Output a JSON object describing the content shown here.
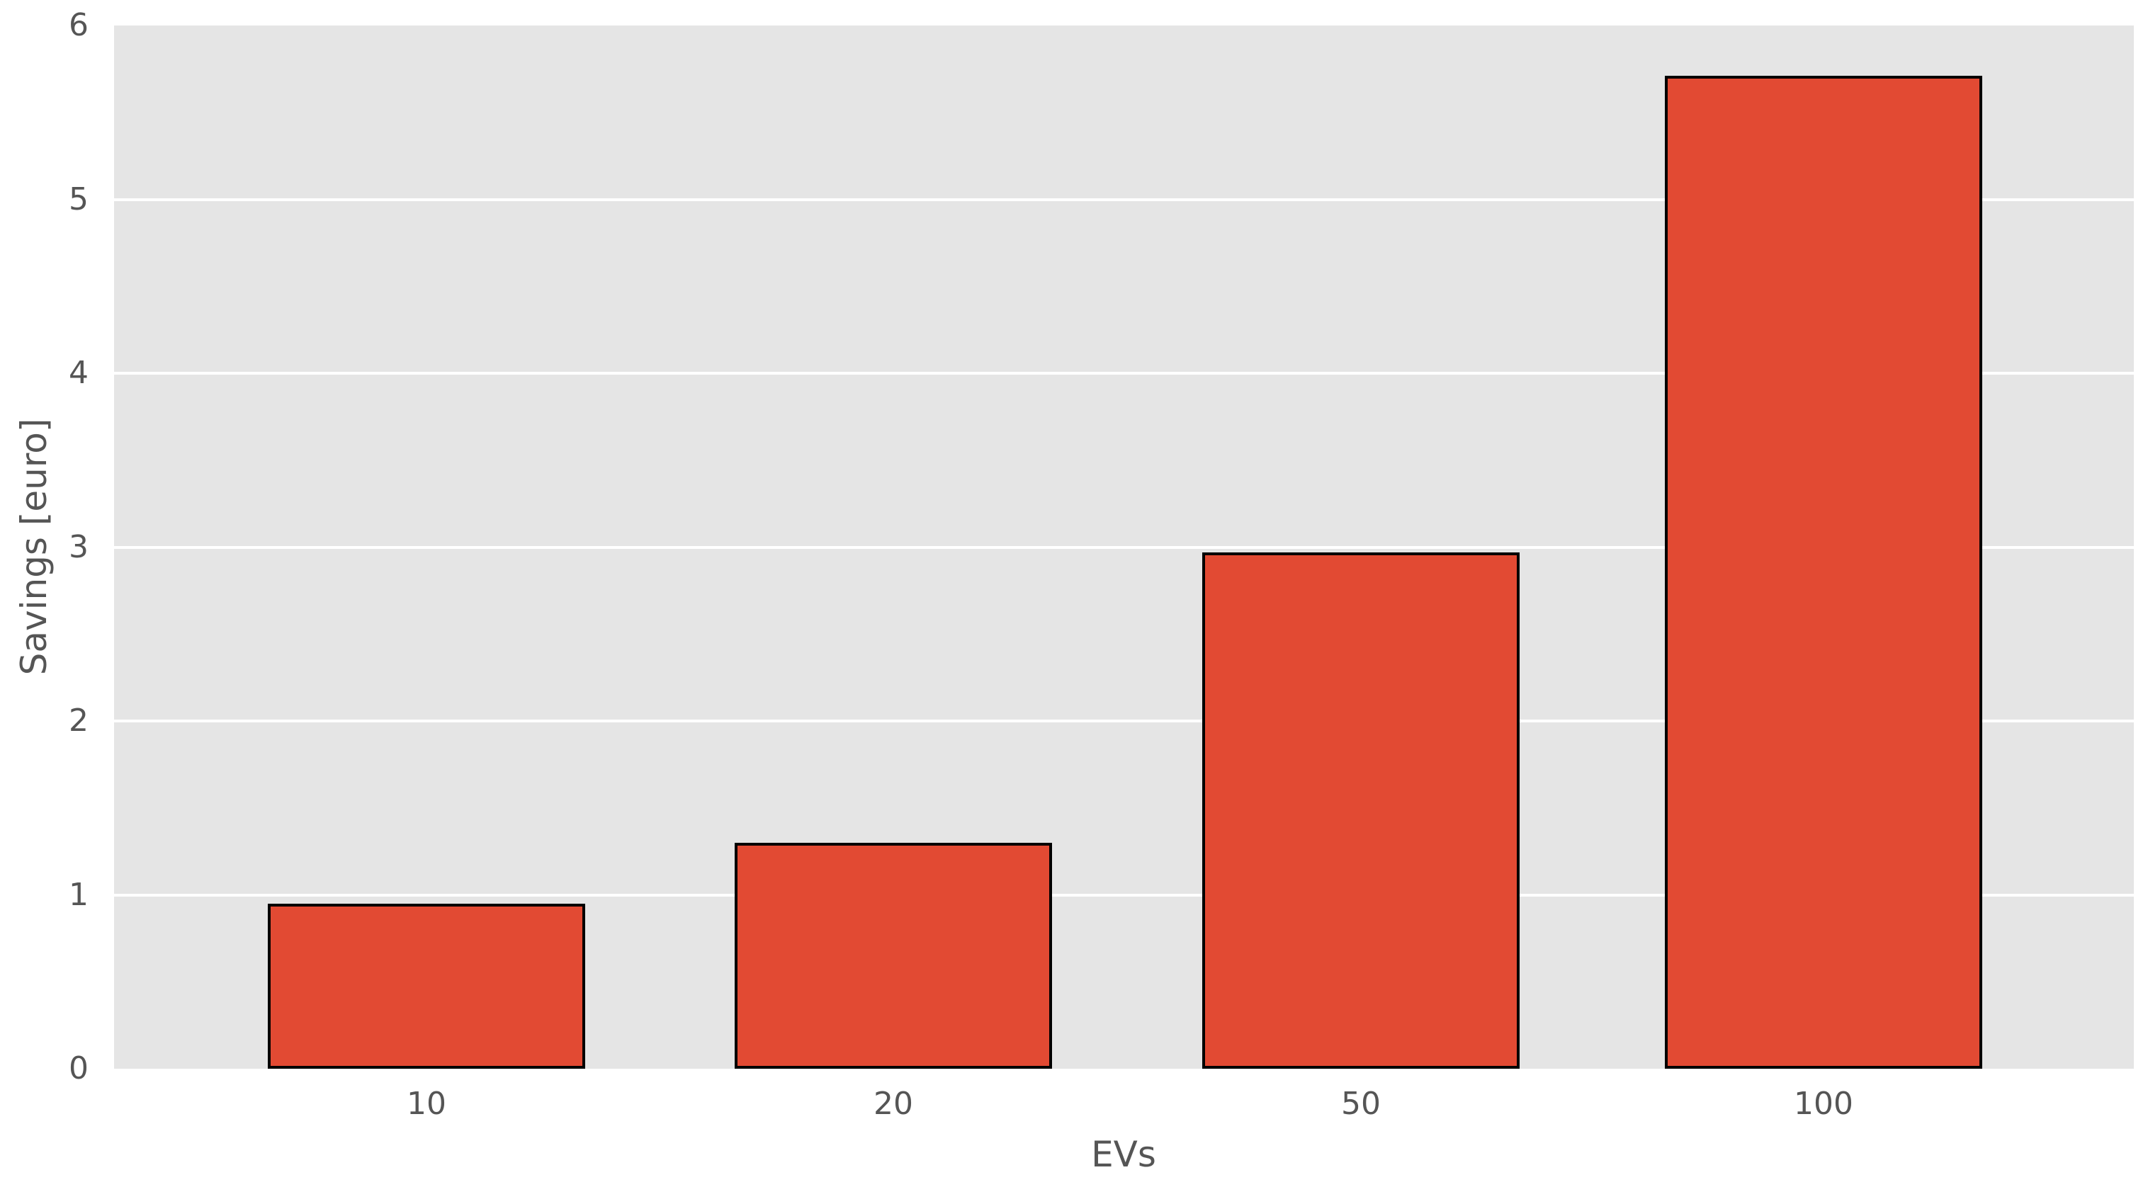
{
  "chart_data": {
    "type": "bar",
    "categories": [
      "10",
      "20",
      "50",
      "100"
    ],
    "values": [
      0.95,
      1.3,
      2.97,
      5.71
    ],
    "title": "",
    "xlabel": "EVs",
    "ylabel": "Savings [euro]",
    "ylim": [
      0,
      6
    ],
    "yticks": [
      0,
      1,
      2,
      3,
      4,
      5,
      6
    ],
    "grid": true,
    "legend": false,
    "style": "ggplot",
    "colors": {
      "bar_fill": "#E24A33",
      "bar_edge": "#000000",
      "plot_background": "#E5E5E5",
      "gridline": "#FFFFFF",
      "text": "#555555",
      "figure_background": "#FFFFFF"
    }
  }
}
